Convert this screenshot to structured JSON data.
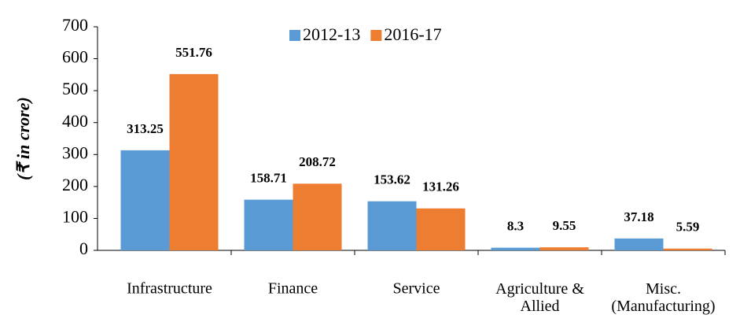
{
  "chart_data": {
    "type": "bar",
    "y_label": "(₹ in crore)",
    "categories": [
      "Infrastructure",
      "Finance",
      "Service",
      "Agriculture &\nAllied",
      "Misc.\n(Manufacturing)"
    ],
    "series": [
      {
        "name": "2012-13",
        "color": "#5b9bd5",
        "values": [
          313.25,
          158.71,
          153.62,
          8.3,
          37.18
        ]
      },
      {
        "name": "2016-17",
        "color": "#ed7d31",
        "values": [
          551.76,
          208.72,
          131.26,
          9.55,
          5.59
        ]
      }
    ],
    "ylim": [
      0,
      700
    ],
    "yticks": [
      0,
      100,
      200,
      300,
      400,
      500,
      600,
      700
    ],
    "grid": false,
    "legend": "top"
  }
}
